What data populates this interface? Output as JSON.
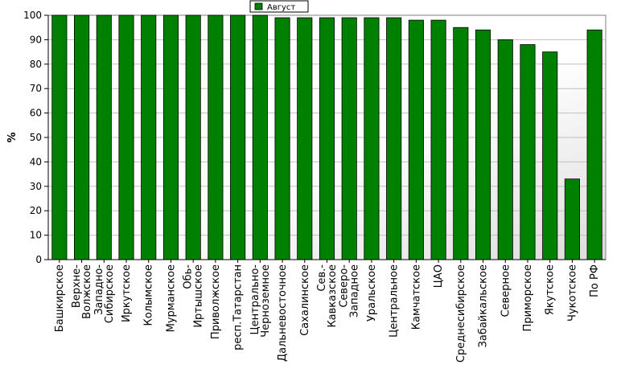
{
  "chart_data": {
    "type": "bar",
    "ylabel": "%",
    "ylim": [
      0,
      100
    ],
    "yticks": [
      0,
      10,
      20,
      30,
      40,
      50,
      60,
      70,
      80,
      90,
      100
    ],
    "grid": true,
    "legend_position": "top-center",
    "categories": [
      "Башкирское",
      "Верхне-Волжское",
      "Западно-Сибирское",
      "Иркутское",
      "Колымское",
      "Мурманское",
      "Обь-Иртышское",
      "Приволжское",
      "респ.Татарстан",
      "Центрально-Черноземное",
      "Дальневосточное",
      "Сахалинское",
      "Сев.-Кавказское",
      "Северо-Западное",
      "Уральское",
      "Центральное",
      "Камчатское",
      "ЦАО",
      "Среднесибирское",
      "Забайкальское",
      "Северное",
      "Приморское",
      "Якутское",
      "Чукотское",
      "По РФ"
    ],
    "series": [
      {
        "name": "Август",
        "color": "#008000",
        "values": [
          100,
          100,
          100,
          100,
          100,
          100,
          100,
          100,
          100,
          100,
          99,
          99,
          99,
          99,
          99,
          99,
          98,
          98,
          95,
          94,
          90,
          88,
          85,
          33,
          94
        ]
      }
    ]
  }
}
